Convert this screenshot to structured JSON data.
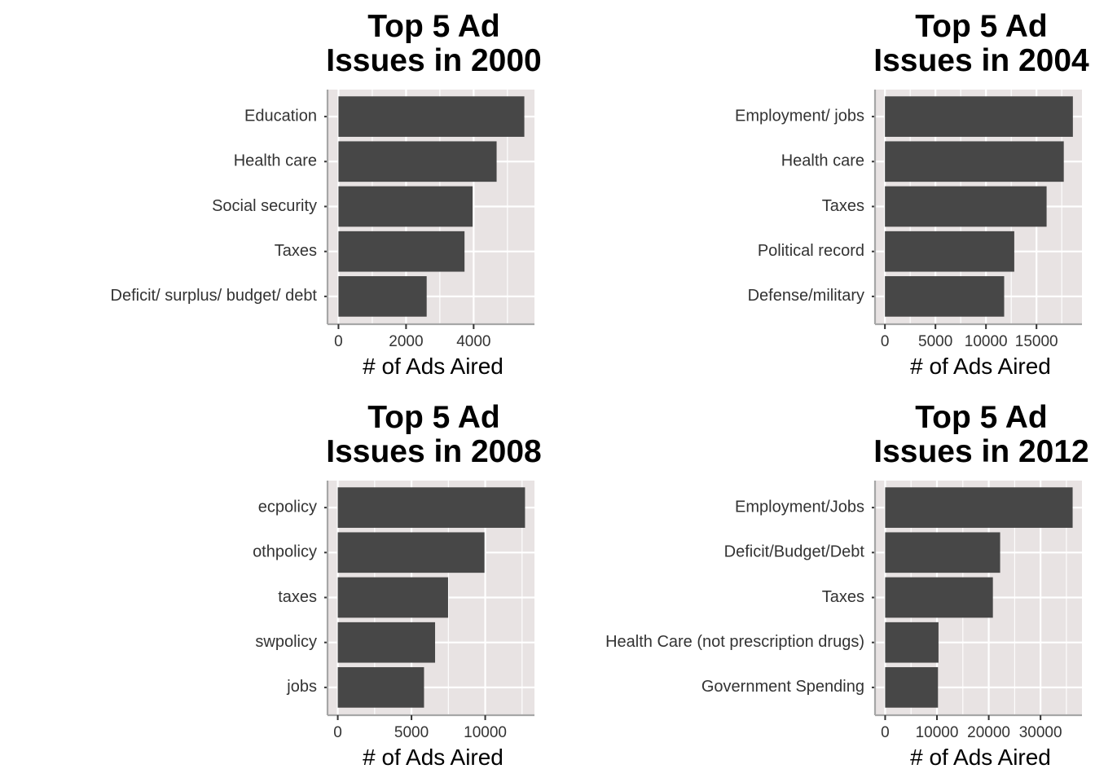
{
  "colors": {
    "panel_background": "#E8E3E3",
    "grid": "#FFFFFF",
    "bar_fill": "#474747",
    "axis": "#A6A6A6",
    "text": "#333333"
  },
  "chart_data": [
    {
      "type": "bar",
      "orientation": "horizontal",
      "title_lines": [
        "Top 5 Ad",
        "Issues in 2000"
      ],
      "xlabel": "# of Ads Aired",
      "categories": [
        "Education",
        "Health care",
        "Social security",
        "Taxes",
        "Deficit/ surplus/ budget/ debt"
      ],
      "values": [
        5500,
        4680,
        3970,
        3730,
        2610
      ],
      "xlim": [
        -300,
        5800
      ],
      "ticks": [
        0,
        2000,
        4000
      ],
      "tick_labels": [
        "0",
        "2000",
        "4000"
      ],
      "minor_ticks": [
        1000,
        3000,
        5000
      ],
      "grid": true
    },
    {
      "type": "bar",
      "orientation": "horizontal",
      "title_lines": [
        "Top 5 Ad",
        "Issues in 2004"
      ],
      "xlabel": "# of Ads Aired",
      "categories": [
        "Employment/ jobs",
        "Health care",
        "Taxes",
        "Political record",
        "Defense/military"
      ],
      "values": [
        18600,
        17700,
        16000,
        12800,
        11800
      ],
      "xlim": [
        -900,
        19500
      ],
      "ticks": [
        0,
        5000,
        10000,
        15000
      ],
      "tick_labels": [
        "0",
        "5000",
        "10000",
        "15000"
      ],
      "minor_ticks": [
        2500,
        7500,
        12500,
        17500
      ],
      "grid": true
    },
    {
      "type": "bar",
      "orientation": "horizontal",
      "title_lines": [
        "Top 5 Ad",
        "Issues in 2008"
      ],
      "xlabel": "# of Ads Aired",
      "categories": [
        "ecpolicy",
        "othpolicy",
        "taxes",
        "swpolicy",
        "jobs"
      ],
      "values": [
        12700,
        9950,
        7480,
        6600,
        5850
      ],
      "xlim": [
        -640,
        13340
      ],
      "ticks": [
        0,
        5000,
        10000
      ],
      "tick_labels": [
        "0",
        "5000",
        "10000"
      ],
      "minor_ticks": [
        2500,
        7500,
        12500
      ],
      "grid": true
    },
    {
      "type": "bar",
      "orientation": "horizontal",
      "title_lines": [
        "Top 5 Ad",
        "Issues in 2012"
      ],
      "xlabel": "# of Ads Aired",
      "categories": [
        "Employment/Jobs",
        "Deficit/Budget/Debt",
        "Taxes",
        "Health Care (not prescription drugs)",
        "Government Spending"
      ],
      "values": [
        36200,
        22200,
        20800,
        10300,
        10200
      ],
      "xlim": [
        -1800,
        38000
      ],
      "ticks": [
        0,
        10000,
        20000,
        30000
      ],
      "tick_labels": [
        "0",
        "10000",
        "20000",
        "30000"
      ],
      "minor_ticks": [
        5000,
        15000,
        25000,
        35000
      ],
      "grid": true
    }
  ]
}
